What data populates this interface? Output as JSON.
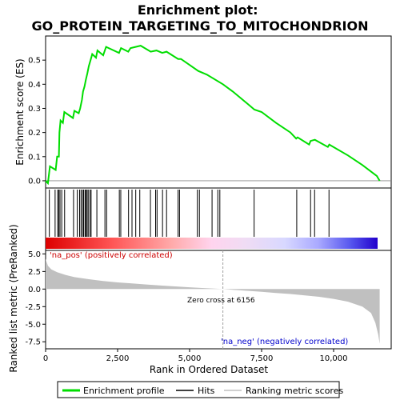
{
  "chart_data": {
    "type": "line",
    "title": "Enrichment plot: GO_PROTEIN_TARGETING_TO_MITOCHONDRION",
    "xlabel": "Rank in Ordered Dataset",
    "top_ylabel": "Enrichment score (ES)",
    "bottom_ylabel": "Ranked list metric (PreRanked)",
    "xlim": [
      0,
      12000
    ],
    "x_ticks": [
      0,
      2500,
      5000,
      7500,
      10000
    ],
    "x_tick_labels": [
      "0",
      "2,500",
      "5,000",
      "7,500",
      "10,000"
    ],
    "es_ylim": [
      -0.03,
      0.6
    ],
    "es_ticks": [
      0.0,
      0.1,
      0.2,
      0.3,
      0.4,
      0.5
    ],
    "es_tick_labels": [
      "0.0",
      "0.1",
      "0.2",
      "0.3",
      "0.4",
      "0.5"
    ],
    "metric_ylim": [
      -8.5,
      5.5
    ],
    "metric_ticks": [
      5.0,
      2.5,
      0.0,
      -2.5,
      -5.0,
      -7.5
    ],
    "metric_tick_labels": [
      "5.0",
      "2.5",
      "0.0",
      "-2.5",
      "-5.0",
      "-7.5"
    ],
    "es_curve": [
      [
        0,
        0
      ],
      [
        80,
        -0.01
      ],
      [
        150,
        0.06
      ],
      [
        350,
        0.045
      ],
      [
        400,
        0.1
      ],
      [
        460,
        0.1
      ],
      [
        480,
        0.2
      ],
      [
        520,
        0.25
      ],
      [
        600,
        0.24
      ],
      [
        650,
        0.285
      ],
      [
        950,
        0.26
      ],
      [
        1000,
        0.29
      ],
      [
        1150,
        0.28
      ],
      [
        1200,
        0.3
      ],
      [
        1260,
        0.335
      ],
      [
        1300,
        0.37
      ],
      [
        1350,
        0.39
      ],
      [
        1400,
        0.42
      ],
      [
        1450,
        0.445
      ],
      [
        1500,
        0.475
      ],
      [
        1560,
        0.5
      ],
      [
        1620,
        0.525
      ],
      [
        1750,
        0.51
      ],
      [
        1800,
        0.54
      ],
      [
        2000,
        0.52
      ],
      [
        2100,
        0.555
      ],
      [
        2550,
        0.53
      ],
      [
        2620,
        0.55
      ],
      [
        2870,
        0.535
      ],
      [
        2950,
        0.55
      ],
      [
        3300,
        0.56
      ],
      [
        3650,
        0.535
      ],
      [
        3850,
        0.54
      ],
      [
        4050,
        0.53
      ],
      [
        4200,
        0.535
      ],
      [
        4600,
        0.505
      ],
      [
        4700,
        0.505
      ],
      [
        5000,
        0.48
      ],
      [
        5300,
        0.455
      ],
      [
        5600,
        0.44
      ],
      [
        6156,
        0.4
      ],
      [
        6500,
        0.37
      ],
      [
        7000,
        0.32
      ],
      [
        7250,
        0.295
      ],
      [
        7500,
        0.285
      ],
      [
        8000,
        0.24
      ],
      [
        8500,
        0.2
      ],
      [
        8700,
        0.175
      ],
      [
        8750,
        0.18
      ],
      [
        9150,
        0.15
      ],
      [
        9200,
        0.165
      ],
      [
        9350,
        0.17
      ],
      [
        9800,
        0.14
      ],
      [
        9850,
        0.15
      ],
      [
        10500,
        0.105
      ],
      [
        11000,
        0.065
      ],
      [
        11500,
        0.02
      ],
      [
        11600,
        0
      ]
    ],
    "hits": [
      130,
      330,
      420,
      460,
      500,
      560,
      660,
      970,
      1100,
      1180,
      1230,
      1280,
      1320,
      1370,
      1400,
      1440,
      1480,
      1540,
      1580,
      1780,
      2060,
      2120,
      2560,
      2610,
      2880,
      3000,
      3130,
      3270,
      3640,
      3820,
      3870,
      4060,
      4200,
      4600,
      4650,
      5270,
      5340,
      5780,
      5980,
      6050,
      7240,
      8720,
      9200,
      9340,
      9840
    ],
    "metric_curve": [
      [
        0,
        4.3
      ],
      [
        80,
        3.3
      ],
      [
        200,
        2.8
      ],
      [
        400,
        2.4
      ],
      [
        700,
        2.0
      ],
      [
        1000,
        1.7
      ],
      [
        1500,
        1.4
      ],
      [
        2000,
        1.15
      ],
      [
        2500,
        0.95
      ],
      [
        3000,
        0.8
      ],
      [
        3500,
        0.65
      ],
      [
        4000,
        0.5
      ],
      [
        4500,
        0.38
      ],
      [
        5000,
        0.25
      ],
      [
        5500,
        0.14
      ],
      [
        6156,
        0
      ],
      [
        6500,
        -0.1
      ],
      [
        7000,
        -0.25
      ],
      [
        7500,
        -0.4
      ],
      [
        8000,
        -0.55
      ],
      [
        8500,
        -0.7
      ],
      [
        9000,
        -0.9
      ],
      [
        9500,
        -1.1
      ],
      [
        10000,
        -1.4
      ],
      [
        10500,
        -1.8
      ],
      [
        11000,
        -2.5
      ],
      [
        11300,
        -3.4
      ],
      [
        11450,
        -4.8
      ],
      [
        11550,
        -6.5
      ],
      [
        11600,
        -7.8
      ]
    ],
    "zero_cross_label": "Zero cross at 6156",
    "zero_cross": 6156,
    "pos_label": "'na_pos' (positively correlated)",
    "neg_label": "'na_neg' (negatively correlated)",
    "legend": [
      "Enrichment profile",
      "Hits",
      "Ranking metric scores"
    ],
    "colors": {
      "es_line": "#00dd00",
      "hits": "#000000",
      "metric_fill": "#c0c0c0",
      "pos_text": "#cc0000",
      "neg_text": "#0000cc",
      "zero_line": "#a0a0a0"
    }
  }
}
